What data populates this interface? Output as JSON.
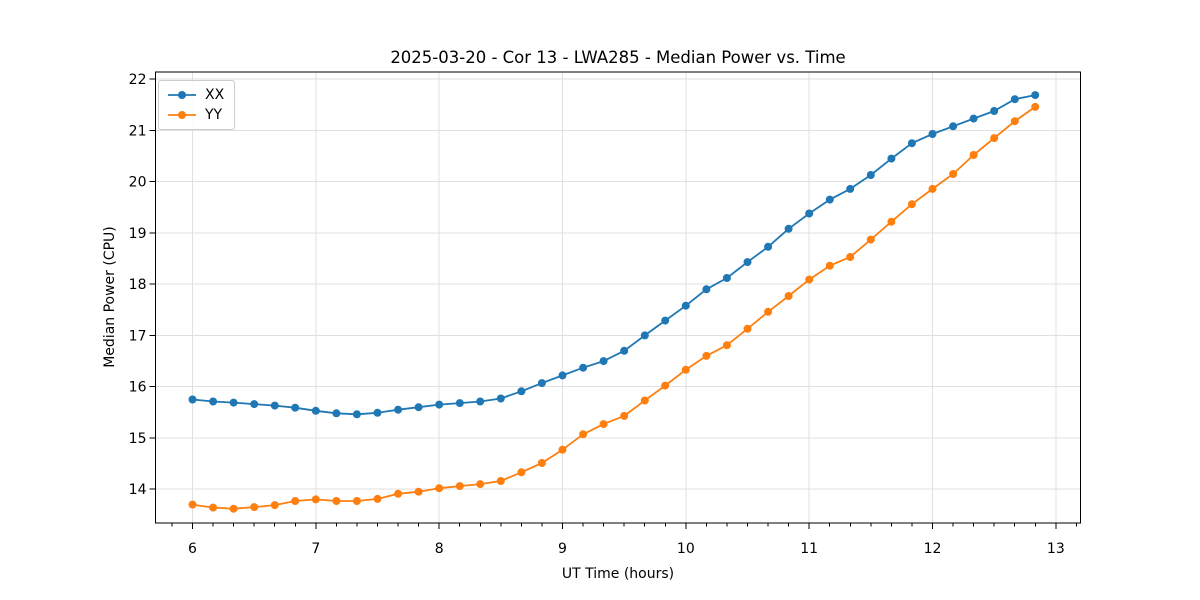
{
  "chart_data": {
    "type": "line",
    "title": "2025-03-20 - Cor 13 - LWA285 - Median Power vs. Time",
    "xlabel": "UT Time (hours)",
    "ylabel": "Median Power (CPU)",
    "xlim": [
      5.7,
      13.2
    ],
    "ylim": [
      13.34,
      22.14
    ],
    "xticks": [
      6,
      7,
      8,
      9,
      10,
      11,
      12,
      13
    ],
    "yticks": [
      14,
      15,
      16,
      17,
      18,
      19,
      20,
      21,
      22
    ],
    "x_minor_step_hours": 0.1667,
    "grid": true,
    "legend_position": "upper left",
    "background_color": "#ffffff",
    "grid_color": "#e0e0e0",
    "axis_color": "#000000",
    "x": [
      6.0,
      6.167,
      6.333,
      6.5,
      6.667,
      6.833,
      7.0,
      7.167,
      7.333,
      7.5,
      7.667,
      7.833,
      8.0,
      8.167,
      8.333,
      8.5,
      8.667,
      8.833,
      9.0,
      9.167,
      9.333,
      9.5,
      9.667,
      9.833,
      10.0,
      10.167,
      10.333,
      10.5,
      10.667,
      10.833,
      11.0,
      11.167,
      11.333,
      11.5,
      11.667,
      11.833,
      12.0,
      12.167,
      12.333,
      12.5,
      12.667,
      12.833
    ],
    "series": [
      {
        "name": "XX",
        "color": "#1f77b4",
        "marker": "circle",
        "values": [
          15.75,
          15.71,
          15.69,
          15.66,
          15.63,
          15.59,
          15.53,
          15.48,
          15.46,
          15.49,
          15.55,
          15.6,
          15.65,
          15.68,
          15.71,
          15.77,
          15.91,
          16.07,
          16.22,
          16.37,
          16.5,
          16.7,
          17.0,
          17.29,
          17.58,
          17.9,
          18.12,
          18.43,
          18.73,
          19.08,
          19.38,
          19.65,
          19.86,
          20.13,
          20.45,
          20.75,
          20.93,
          21.08,
          21.23,
          21.38,
          21.61,
          21.69
        ]
      },
      {
        "name": "YY",
        "color": "#ff7f0e",
        "marker": "circle",
        "values": [
          13.7,
          13.64,
          13.62,
          13.65,
          13.69,
          13.77,
          13.8,
          13.77,
          13.77,
          13.81,
          13.91,
          13.95,
          14.02,
          14.06,
          14.1,
          14.16,
          14.33,
          14.51,
          14.77,
          15.07,
          15.27,
          15.43,
          15.73,
          16.02,
          16.33,
          16.6,
          16.81,
          17.13,
          17.46,
          17.77,
          18.09,
          18.36,
          18.53,
          18.87,
          19.22,
          19.56,
          19.86,
          20.15,
          20.52,
          20.85,
          21.18,
          21.46
        ]
      }
    ]
  }
}
